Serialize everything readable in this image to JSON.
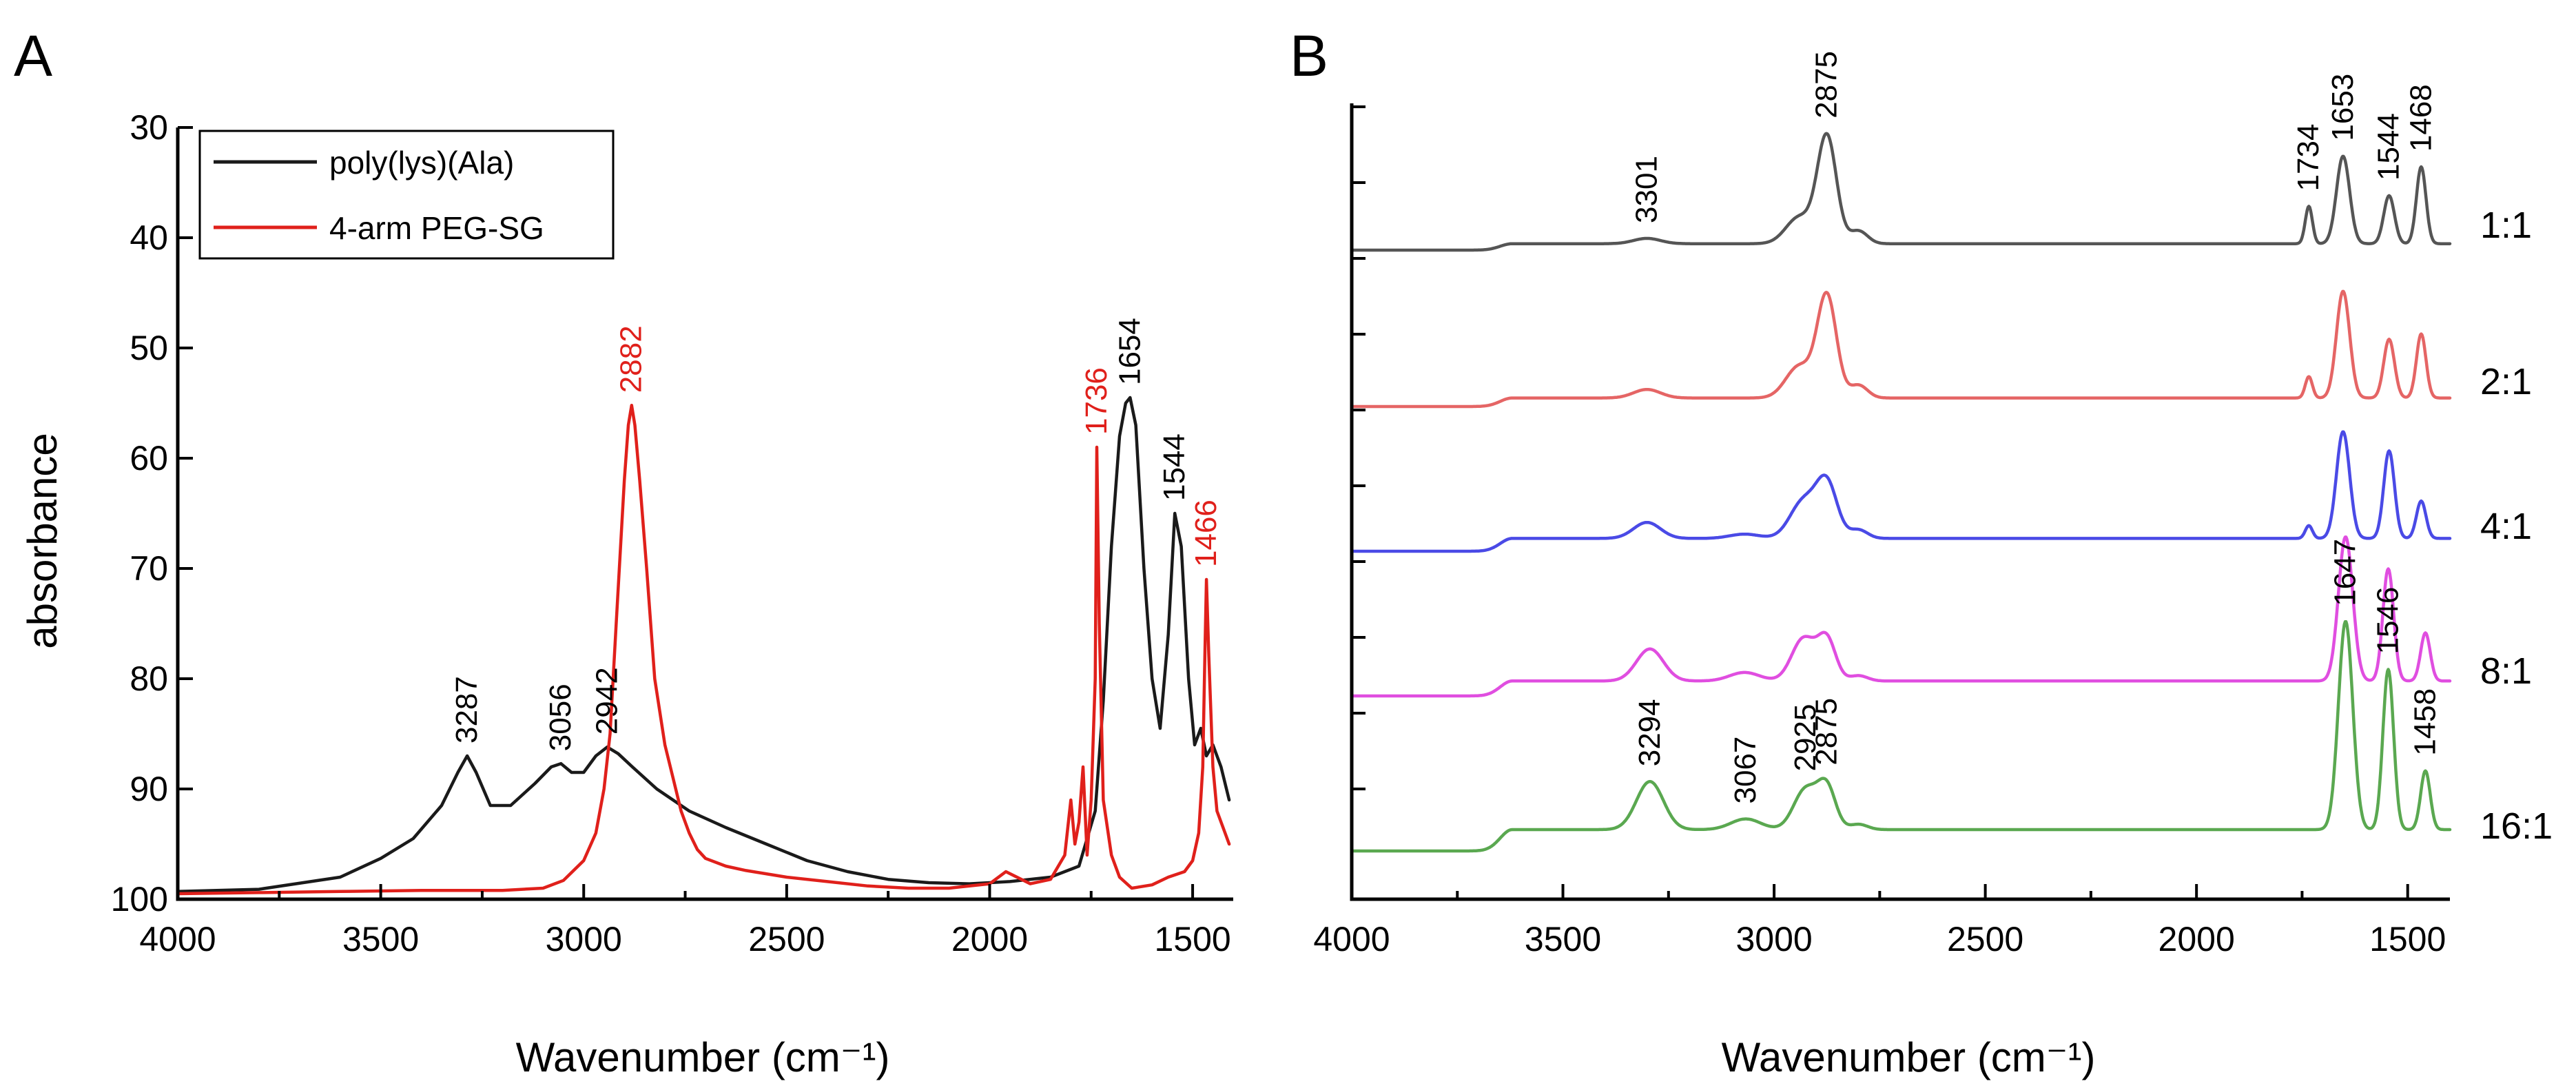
{
  "chart_data": [
    {
      "panel": "A",
      "type": "line",
      "title": "",
      "xlabel": "Wavenumber (cm⁻¹)",
      "ylabel": "absorbance",
      "xlim": [
        4000,
        1400
      ],
      "ylim": [
        100,
        30
      ],
      "xticks": [
        4000,
        3500,
        3000,
        2500,
        2000,
        1500
      ],
      "yticks": [
        30,
        40,
        50,
        60,
        70,
        80,
        90,
        100
      ],
      "legend_position": "top-left",
      "series": [
        {
          "name": "poly(lys)(Ala)",
          "color": "#1a1a1a",
          "x": [
            4000,
            3800,
            3600,
            3500,
            3420,
            3350,
            3310,
            3287,
            3265,
            3230,
            3180,
            3120,
            3080,
            3056,
            3030,
            3000,
            2970,
            2942,
            2915,
            2880,
            2820,
            2740,
            2650,
            2550,
            2450,
            2350,
            2250,
            2150,
            2050,
            1950,
            1850,
            1780,
            1740,
            1720,
            1700,
            1680,
            1665,
            1654,
            1640,
            1620,
            1600,
            1580,
            1560,
            1544,
            1528,
            1510,
            1495,
            1480,
            1466,
            1450,
            1430,
            1410
          ],
          "y": [
            99.3,
            99.1,
            98.0,
            96.3,
            94.5,
            91.5,
            88.5,
            87.0,
            88.5,
            91.5,
            91.5,
            89.5,
            88.0,
            87.7,
            88.5,
            88.5,
            87.0,
            86.2,
            86.8,
            88.0,
            90.0,
            92.0,
            93.5,
            95.0,
            96.5,
            97.5,
            98.2,
            98.5,
            98.6,
            98.4,
            98.0,
            97.0,
            92.0,
            82.0,
            68.0,
            58.0,
            55.0,
            54.5,
            57.0,
            70.0,
            80.0,
            84.5,
            76.0,
            65.0,
            68.0,
            80.0,
            86.0,
            84.5,
            87.0,
            86.0,
            88.0,
            91.0
          ]
        },
        {
          "name": "4-arm PEG-SG",
          "color": "#e0201b",
          "x": [
            4000,
            3800,
            3600,
            3400,
            3200,
            3100,
            3050,
            3000,
            2970,
            2950,
            2935,
            2920,
            2900,
            2890,
            2882,
            2874,
            2862,
            2845,
            2825,
            2800,
            2780,
            2760,
            2740,
            2720,
            2700,
            2650,
            2600,
            2500,
            2400,
            2300,
            2200,
            2100,
            2000,
            1960,
            1900,
            1850,
            1815,
            1800,
            1790,
            1780,
            1770,
            1760,
            1750,
            1740,
            1736,
            1730,
            1720,
            1700,
            1680,
            1650,
            1600,
            1560,
            1520,
            1500,
            1485,
            1475,
            1470,
            1466,
            1460,
            1450,
            1440,
            1430,
            1410
          ],
          "y": [
            99.5,
            99.4,
            99.3,
            99.2,
            99.2,
            99.0,
            98.3,
            96.5,
            94.0,
            90.0,
            85.0,
            75.0,
            62.0,
            57.0,
            55.2,
            57.0,
            62.0,
            70.0,
            80.0,
            86.0,
            89.0,
            92.0,
            94.0,
            95.5,
            96.3,
            97.0,
            97.4,
            98.0,
            98.4,
            98.8,
            99.0,
            99.0,
            98.6,
            97.5,
            98.6,
            98.2,
            96.0,
            91.0,
            95.0,
            93.0,
            88.0,
            96.0,
            91.0,
            80.0,
            59.0,
            75.0,
            91.0,
            96.0,
            98.0,
            99.0,
            98.7,
            98.0,
            97.5,
            96.5,
            94.0,
            88.0,
            78.0,
            71.0,
            78.0,
            88.0,
            92.0,
            93.0,
            95.0
          ]
        }
      ],
      "annotations": [
        {
          "text": "3287",
          "x": 3287,
          "y": 87.0,
          "color": "#000000"
        },
        {
          "text": "3056",
          "x": 3056,
          "y": 87.7,
          "color": "#000000"
        },
        {
          "text": "2942",
          "x": 2942,
          "y": 86.2,
          "color": "#000000"
        },
        {
          "text": "2882",
          "x": 2882,
          "y": 55.2,
          "color": "#e0201b"
        },
        {
          "text": "1736",
          "x": 1736,
          "y": 59.0,
          "color": "#e0201b"
        },
        {
          "text": "1654",
          "x": 1654,
          "y": 54.5,
          "color": "#000000"
        },
        {
          "text": "1544",
          "x": 1544,
          "y": 65.0,
          "color": "#000000"
        },
        {
          "text": "1466",
          "x": 1466,
          "y": 71.0,
          "color": "#e0201b"
        }
      ]
    },
    {
      "panel": "B",
      "type": "line",
      "title": "",
      "xlabel": "Wavenumber (cm⁻¹)",
      "ylabel": "",
      "xlim": [
        4000,
        1400
      ],
      "xticks": [
        4000,
        3500,
        3000,
        2500,
        2000,
        1500
      ],
      "stacked": true,
      "series": [
        {
          "name": "1:1",
          "color": "#555555",
          "peaks": [
            {
              "x": 3500,
              "h": 0.06,
              "w": 130
            },
            {
              "x": 3301,
              "h": 0.05,
              "w": 45
            },
            {
              "x": 2940,
              "h": 0.25,
              "w": 45
            },
            {
              "x": 2875,
              "h": 1.0,
              "w": 32
            },
            {
              "x": 2800,
              "h": 0.12,
              "w": 30
            },
            {
              "x": 1734,
              "h": 0.35,
              "w": 12
            },
            {
              "x": 1653,
              "h": 0.82,
              "w": 22
            },
            {
              "x": 1544,
              "h": 0.45,
              "w": 18
            },
            {
              "x": 1468,
              "h": 0.72,
              "w": 16
            }
          ]
        },
        {
          "name": "2:1",
          "color": "#e56565",
          "peaks": [
            {
              "x": 3500,
              "h": 0.08,
              "w": 130
            },
            {
              "x": 3301,
              "h": 0.08,
              "w": 45
            },
            {
              "x": 2940,
              "h": 0.3,
              "w": 45
            },
            {
              "x": 2875,
              "h": 0.95,
              "w": 32
            },
            {
              "x": 2800,
              "h": 0.12,
              "w": 30
            },
            {
              "x": 1734,
              "h": 0.2,
              "w": 12
            },
            {
              "x": 1653,
              "h": 1.0,
              "w": 22
            },
            {
              "x": 1544,
              "h": 0.55,
              "w": 18
            },
            {
              "x": 1468,
              "h": 0.6,
              "w": 16
            }
          ]
        },
        {
          "name": "4:1",
          "color": "#4a4ae6",
          "peaks": [
            {
              "x": 3500,
              "h": 0.12,
              "w": 130
            },
            {
              "x": 3301,
              "h": 0.15,
              "w": 45
            },
            {
              "x": 3070,
              "h": 0.04,
              "w": 50
            },
            {
              "x": 2930,
              "h": 0.35,
              "w": 45
            },
            {
              "x": 2875,
              "h": 0.5,
              "w": 35
            },
            {
              "x": 2800,
              "h": 0.08,
              "w": 30
            },
            {
              "x": 1734,
              "h": 0.12,
              "w": 12
            },
            {
              "x": 1653,
              "h": 1.0,
              "w": 22
            },
            {
              "x": 1544,
              "h": 0.82,
              "w": 18
            },
            {
              "x": 1468,
              "h": 0.35,
              "w": 16
            }
          ]
        },
        {
          "name": "8:1",
          "color": "#e04ee0",
          "peaks": [
            {
              "x": 3500,
              "h": 0.14,
              "w": 130
            },
            {
              "x": 3294,
              "h": 0.3,
              "w": 45
            },
            {
              "x": 3070,
              "h": 0.08,
              "w": 50
            },
            {
              "x": 2930,
              "h": 0.4,
              "w": 40
            },
            {
              "x": 2875,
              "h": 0.38,
              "w": 30
            },
            {
              "x": 2800,
              "h": 0.05,
              "w": 30
            },
            {
              "x": 1647,
              "h": 1.35,
              "w": 24
            },
            {
              "x": 1546,
              "h": 1.05,
              "w": 18
            },
            {
              "x": 1458,
              "h": 0.45,
              "w": 16
            }
          ]
        },
        {
          "name": "16:1",
          "color": "#5aa850",
          "peaks": [
            {
              "x": 3500,
              "h": 0.2,
              "w": 130
            },
            {
              "x": 3294,
              "h": 0.45,
              "w": 45
            },
            {
              "x": 3067,
              "h": 0.1,
              "w": 50
            },
            {
              "x": 2925,
              "h": 0.38,
              "w": 40
            },
            {
              "x": 2875,
              "h": 0.38,
              "w": 30
            },
            {
              "x": 2800,
              "h": 0.05,
              "w": 30
            },
            {
              "x": 1647,
              "h": 1.95,
              "w": 24
            },
            {
              "x": 1546,
              "h": 1.5,
              "w": 18
            },
            {
              "x": 1458,
              "h": 0.55,
              "w": 16
            }
          ]
        }
      ],
      "annotations": [
        {
          "text": "3301",
          "x": 3301,
          "series": "1:1"
        },
        {
          "text": "2875",
          "x": 2875,
          "series": "1:1"
        },
        {
          "text": "1734",
          "x": 1734,
          "series": "1:1"
        },
        {
          "text": "1653",
          "x": 1653,
          "series": "1:1"
        },
        {
          "text": "1544",
          "x": 1544,
          "series": "1:1"
        },
        {
          "text": "1468",
          "x": 1468,
          "series": "1:1"
        },
        {
          "text": "3294",
          "x": 3294,
          "series": "16:1"
        },
        {
          "text": "3067",
          "x": 3067,
          "series": "16:1"
        },
        {
          "text": "2925",
          "x": 2925,
          "series": "16:1"
        },
        {
          "text": "2875",
          "x": 2875,
          "series": "16:1"
        },
        {
          "text": "1647",
          "x": 1647,
          "series": "16:1"
        },
        {
          "text": "1546",
          "x": 1546,
          "series": "16:1"
        },
        {
          "text": "1458",
          "x": 1458,
          "series": "16:1"
        }
      ]
    }
  ]
}
